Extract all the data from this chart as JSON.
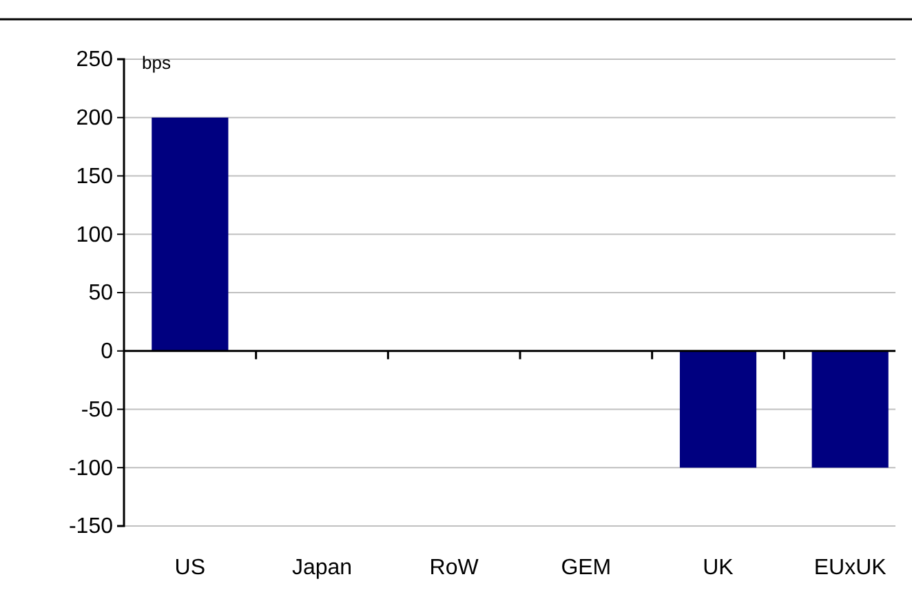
{
  "chart_data": {
    "type": "bar",
    "ylabel": "bps",
    "categories": [
      "US",
      "Japan",
      "RoW",
      "GEM",
      "UK",
      "EUxUK"
    ],
    "values": [
      200,
      0,
      0,
      0,
      -100,
      -100
    ],
    "color": "#000080",
    "ylim": [
      -150,
      250
    ],
    "yticks": [
      -150,
      -100,
      -50,
      0,
      50,
      100,
      150,
      200,
      250
    ],
    "grid": "y"
  }
}
